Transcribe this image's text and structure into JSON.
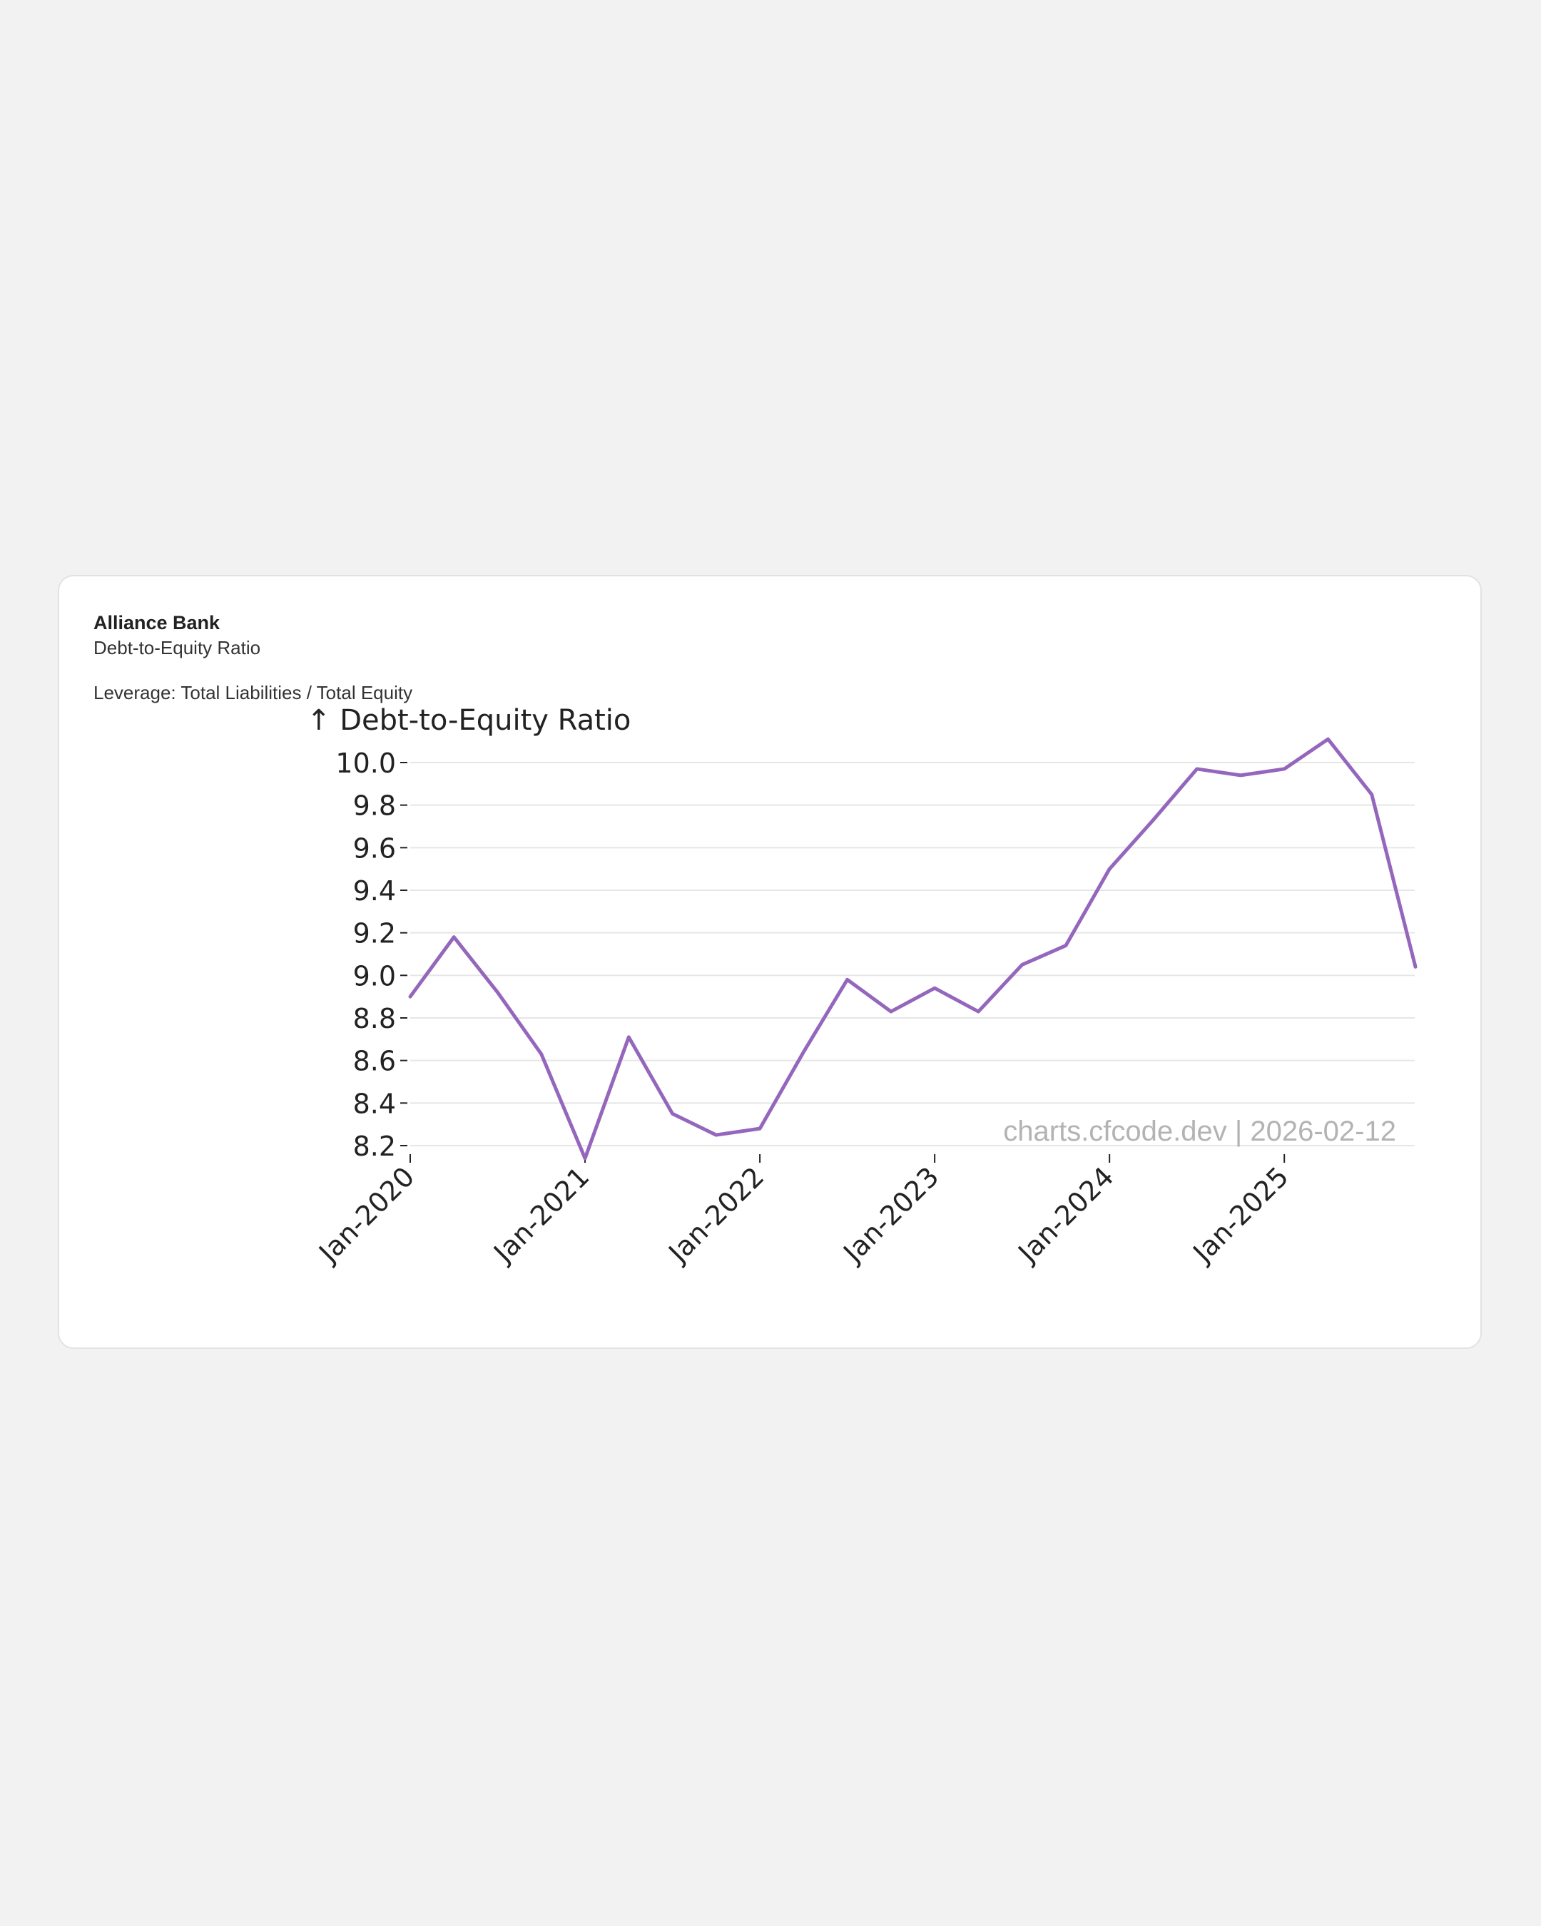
{
  "card": {
    "company": "Alliance Bank",
    "metric": "Debt-to-Equity Ratio",
    "subtitle": "Leverage: Total Liabilities / Total Equity"
  },
  "watermark": "charts.cfcode.dev | 2026-02-12",
  "colors": {
    "line": "#9467bd",
    "grid": "#e6e6e6",
    "text": "#222222",
    "watermark": "#b3b3b3",
    "page_background": "#f2f2f2",
    "card_background": "#ffffff"
  },
  "chart_data": {
    "type": "line",
    "title": "",
    "ylabel": "↑ Debt-to-Equity Ratio",
    "xlabel": "",
    "grid": "horizontal",
    "legend": "none",
    "ylim": [
      8.2,
      10.0
    ],
    "yticks": [
      8.2,
      8.4,
      8.6,
      8.8,
      9.0,
      9.2,
      9.4,
      9.6,
      9.8,
      10.0
    ],
    "xlim": [
      "2020-01",
      "2025-10"
    ],
    "xticks": [
      {
        "date": "2020-01",
        "label": "Jan-2020"
      },
      {
        "date": "2021-01",
        "label": "Jan-2021"
      },
      {
        "date": "2022-01",
        "label": "Jan-2022"
      },
      {
        "date": "2023-01",
        "label": "Jan-2023"
      },
      {
        "date": "2024-01",
        "label": "Jan-2024"
      },
      {
        "date": "2025-01",
        "label": "Jan-2025"
      }
    ],
    "series": [
      {
        "points": [
          {
            "x": "2020-01",
            "y": 8.9
          },
          {
            "x": "2020-04",
            "y": 9.18
          },
          {
            "x": "2020-07",
            "y": 8.92
          },
          {
            "x": "2020-10",
            "y": 8.63
          },
          {
            "x": "2021-01",
            "y": 8.14
          },
          {
            "x": "2021-04",
            "y": 8.71
          },
          {
            "x": "2021-07",
            "y": 8.35
          },
          {
            "x": "2021-10",
            "y": 8.25
          },
          {
            "x": "2022-01",
            "y": 8.28
          },
          {
            "x": "2022-04",
            "y": 8.64
          },
          {
            "x": "2022-07",
            "y": 8.98
          },
          {
            "x": "2022-10",
            "y": 8.83
          },
          {
            "x": "2023-01",
            "y": 8.94
          },
          {
            "x": "2023-04",
            "y": 8.83
          },
          {
            "x": "2023-07",
            "y": 9.05
          },
          {
            "x": "2023-10",
            "y": 9.14
          },
          {
            "x": "2024-01",
            "y": 9.5
          },
          {
            "x": "2024-04",
            "y": 9.73
          },
          {
            "x": "2024-07",
            "y": 9.97
          },
          {
            "x": "2024-10",
            "y": 9.94
          },
          {
            "x": "2025-01",
            "y": 9.97
          },
          {
            "x": "2025-04",
            "y": 10.11
          },
          {
            "x": "2025-07",
            "y": 9.85
          },
          {
            "x": "2025-10",
            "y": 9.04
          }
        ]
      }
    ]
  }
}
